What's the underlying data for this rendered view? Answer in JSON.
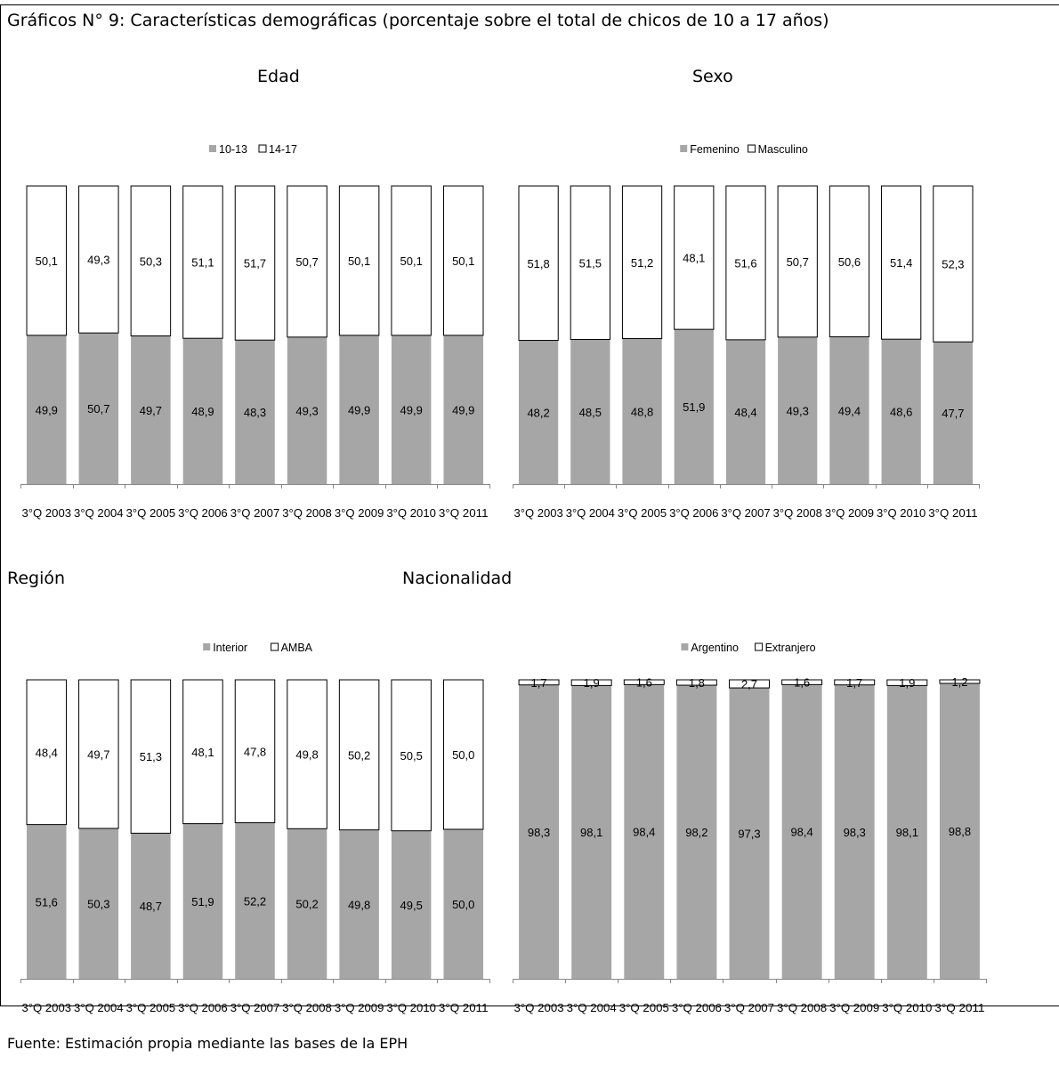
{
  "heading": "Gráficos N° 9: Características demográficas (porcentaje sobre el total de chicos de 10 a 17 años)",
  "source": "Fuente: Estimación propia mediante las bases de la EPH",
  "colors": {
    "bottom_series": "#a6a6a6",
    "top_series": "#ffffff",
    "stroke": "#000000"
  },
  "chart_data": [
    {
      "type": "bar",
      "stacked": true,
      "title": "Edad",
      "categories": [
        "3°Q 2003",
        "3°Q 2004",
        "3°Q 2005",
        "3°Q 2006",
        "3°Q 2007",
        "3°Q 2008",
        "3°Q 2009",
        "3°Q 2010",
        "3°Q 2011"
      ],
      "series": [
        {
          "name": "10-13",
          "values": [
            49.9,
            50.7,
            49.7,
            48.9,
            48.3,
            49.3,
            49.9,
            49.9,
            49.9
          ]
        },
        {
          "name": "14-17",
          "values": [
            50.1,
            49.3,
            50.3,
            51.1,
            51.7,
            50.7,
            50.1,
            50.1,
            50.1
          ]
        }
      ],
      "ylim": [
        0,
        100
      ],
      "legend": "top-center",
      "grid": false
    },
    {
      "type": "bar",
      "stacked": true,
      "title": "Sexo",
      "categories": [
        "3°Q 2003",
        "3°Q 2004",
        "3°Q 2005",
        "3°Q 2006",
        "3°Q 2007",
        "3°Q 2008",
        "3°Q 2009",
        "3°Q 2010",
        "3°Q 2011"
      ],
      "series": [
        {
          "name": "Femenino",
          "values": [
            48.2,
            48.5,
            48.8,
            51.9,
            48.4,
            49.3,
            49.4,
            48.6,
            47.7
          ]
        },
        {
          "name": "Masculino",
          "values": [
            51.8,
            51.5,
            51.2,
            48.1,
            51.6,
            50.7,
            50.6,
            51.4,
            52.3
          ]
        }
      ],
      "ylim": [
        0,
        100
      ],
      "legend": "top-center",
      "grid": false
    },
    {
      "type": "bar",
      "stacked": true,
      "title": "Región",
      "categories": [
        "3°Q 2003",
        "3°Q 2004",
        "3°Q 2005",
        "3°Q 2006",
        "3°Q 2007",
        "3°Q 2008",
        "3°Q 2009",
        "3°Q 2010",
        "3°Q 2011"
      ],
      "series": [
        {
          "name": "Interior",
          "values": [
            51.6,
            50.3,
            48.7,
            51.9,
            52.2,
            50.2,
            49.8,
            49.5,
            50.0
          ]
        },
        {
          "name": "AMBA",
          "values": [
            48.4,
            49.7,
            51.3,
            48.1,
            47.8,
            49.8,
            50.2,
            50.5,
            50.0
          ]
        }
      ],
      "ylim": [
        0,
        100
      ],
      "legend": "top-center",
      "grid": false
    },
    {
      "type": "bar",
      "stacked": true,
      "title": "Nacionalidad",
      "categories": [
        "3°Q 2003",
        "3°Q 2004",
        "3°Q 2005",
        "3°Q 2006",
        "3°Q 2007",
        "3°Q 2008",
        "3°Q 2009",
        "3°Q 2010",
        "3°Q 2011"
      ],
      "series": [
        {
          "name": "Argentino",
          "values": [
            98.3,
            98.1,
            98.4,
            98.2,
            97.3,
            98.4,
            98.3,
            98.1,
            98.8
          ]
        },
        {
          "name": "Extranjero",
          "values": [
            1.7,
            1.9,
            1.6,
            1.8,
            2.7,
            1.6,
            1.7,
            1.9,
            1.2
          ]
        }
      ],
      "ylim": [
        0,
        100
      ],
      "legend": "top-center",
      "grid": false
    }
  ]
}
